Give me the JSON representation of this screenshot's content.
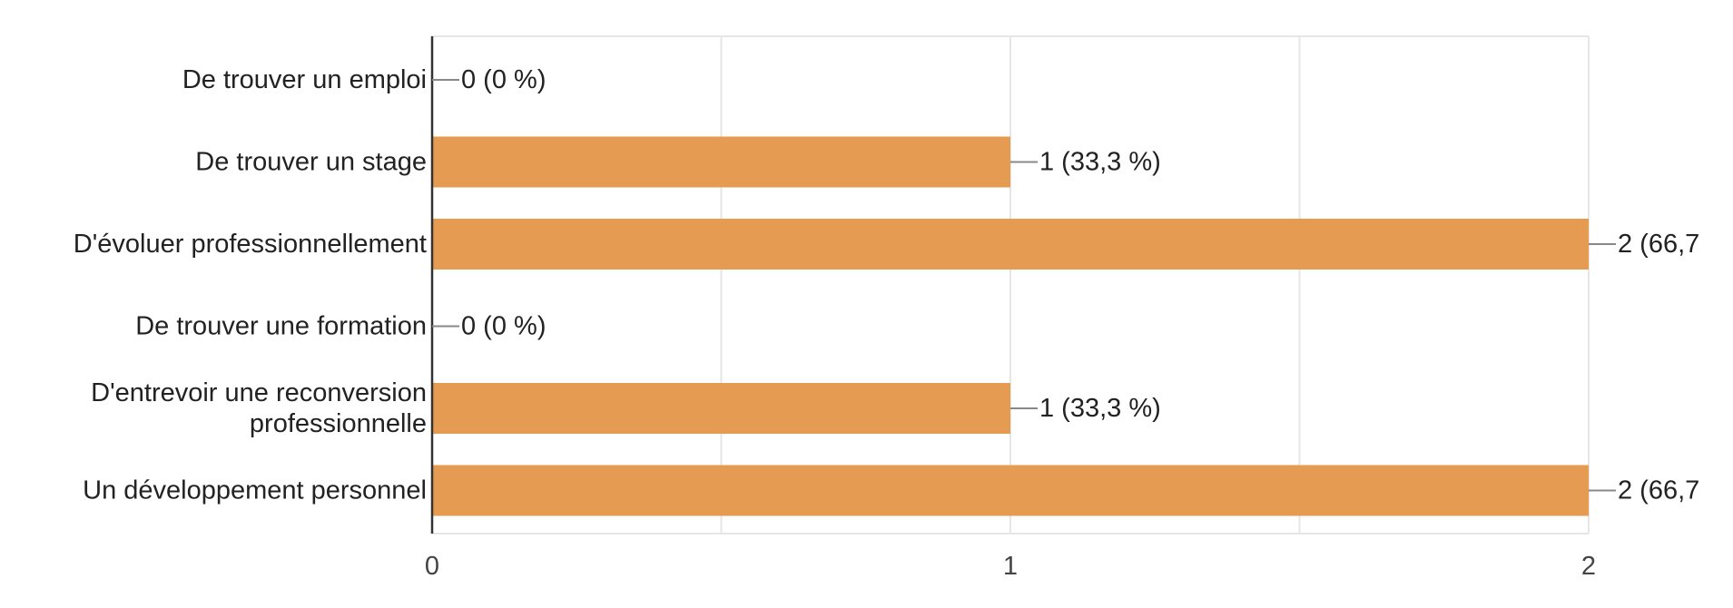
{
  "chart_data": {
    "type": "bar",
    "orientation": "horizontal",
    "categories": [
      [
        "De trouver un emploi"
      ],
      [
        "De trouver un stage"
      ],
      [
        "D'évoluer professionnellement"
      ],
      [
        "De trouver une formation"
      ],
      [
        "D'entrevoir une reconversion",
        "professionnelle"
      ],
      [
        "Un développement personnel"
      ]
    ],
    "values": [
      0,
      1,
      2,
      0,
      1,
      2
    ],
    "value_labels": [
      "0 (0 %)",
      "1 (33,3 %)",
      "2 (66,7",
      "0 (0 %)",
      "1 (33,3 %)",
      "2 (66,7"
    ],
    "xlim": [
      0,
      2
    ],
    "xticks": [
      0,
      1,
      2
    ],
    "xtick_labels": [
      "0",
      "1",
      "2"
    ],
    "grid": true,
    "colors": {
      "bar": "#e59b52",
      "grid": "#e6e6e6",
      "axis": "#333333",
      "leader": "#888888"
    }
  }
}
